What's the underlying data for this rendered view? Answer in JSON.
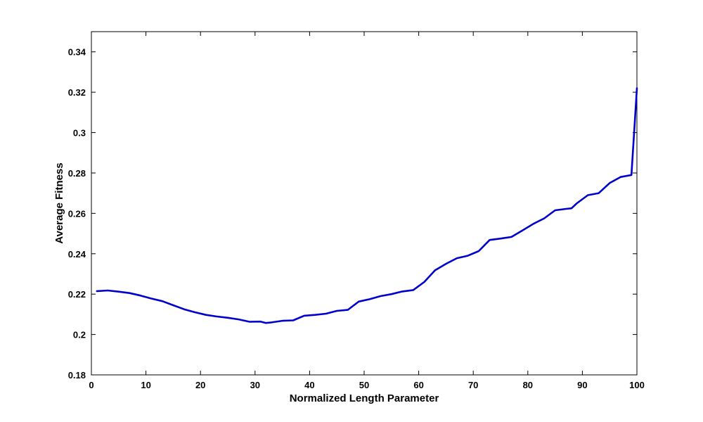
{
  "chart_data": {
    "type": "line",
    "title": "",
    "xlabel": "Normalized Length Parameter",
    "ylabel": "Average Fitness",
    "xlim": [
      0,
      100
    ],
    "ylim": [
      0.18,
      0.35
    ],
    "grid": false,
    "xticks": [
      0,
      10,
      20,
      30,
      40,
      50,
      60,
      70,
      80,
      90,
      100
    ],
    "xtick_labels": [
      "0",
      "10",
      "20",
      "30",
      "40",
      "50",
      "60",
      "70",
      "80",
      "90",
      "100"
    ],
    "yticks": [
      0.18,
      0.2,
      0.22,
      0.24,
      0.26,
      0.28,
      0.3,
      0.32,
      0.34
    ],
    "ytick_labels": [
      "0.18",
      "0.2",
      "0.22",
      "0.24",
      "0.26",
      "0.28",
      "0.3",
      "0.32",
      "0.34"
    ],
    "series": [
      {
        "color": "#0000cc",
        "x": [
          1,
          3,
          5,
          7,
          9,
          11,
          13,
          15,
          17,
          19,
          21,
          23,
          25,
          27,
          29,
          31,
          32,
          33,
          35,
          37,
          39,
          41,
          43,
          45,
          47,
          49,
          51,
          53,
          55,
          57,
          59,
          61,
          63,
          65,
          67,
          69,
          71,
          73,
          75,
          77,
          79,
          81,
          83,
          85,
          87,
          88,
          89,
          91,
          93,
          95,
          97,
          99,
          100
        ],
        "y": [
          0.2215,
          0.2218,
          0.2212,
          0.2205,
          0.2193,
          0.2178,
          0.2165,
          0.2145,
          0.2125,
          0.211,
          0.2097,
          0.2089,
          0.2083,
          0.2075,
          0.2063,
          0.2064,
          0.2057,
          0.206,
          0.2068,
          0.207,
          0.2093,
          0.2097,
          0.2103,
          0.2117,
          0.2122,
          0.2163,
          0.2175,
          0.219,
          0.22,
          0.2213,
          0.222,
          0.226,
          0.2318,
          0.235,
          0.2378,
          0.239,
          0.2413,
          0.2468,
          0.2475,
          0.2483,
          0.2515,
          0.2548,
          0.2575,
          0.2615,
          0.2622,
          0.2625,
          0.265,
          0.269,
          0.27,
          0.275,
          0.278,
          0.279,
          0.322
        ]
      }
    ]
  }
}
